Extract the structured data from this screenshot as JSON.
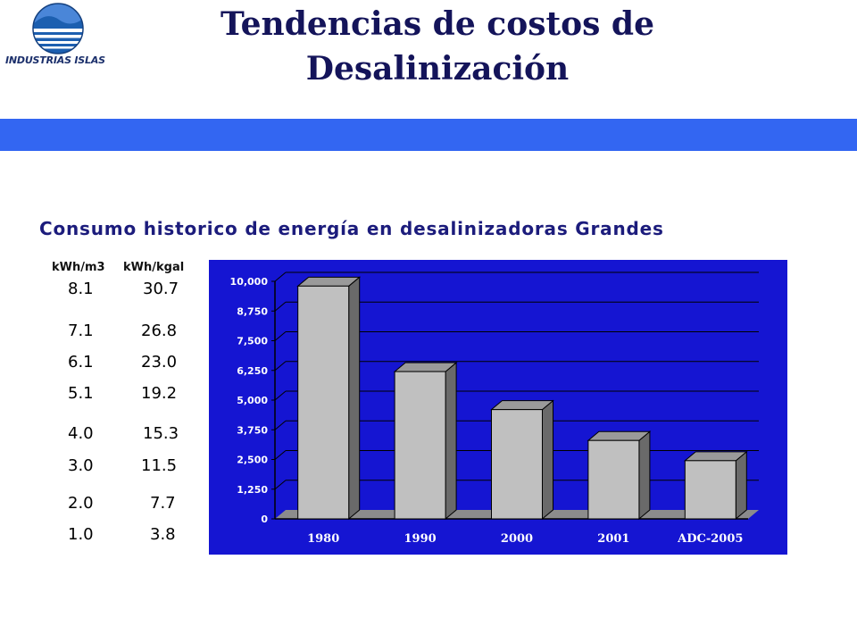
{
  "header": {
    "logo_text": "INDUSTRIAS ISLAS",
    "title_line1": "Tendencias de costos de",
    "title_line2": "Desalinización"
  },
  "conversion_table": {
    "col1_header": "kWh/m3",
    "col2_header": "kWh/kgal",
    "rows": [
      {
        "kwh_m3": "8.1",
        "kwh_kgal": "30.7"
      },
      {
        "kwh_m3": "7.1",
        "kwh_kgal": "26.8"
      },
      {
        "kwh_m3": "6.1",
        "kwh_kgal": "23.0"
      },
      {
        "kwh_m3": "5.1",
        "kwh_kgal": "19.2"
      },
      {
        "kwh_m3": "4.0",
        "kwh_kgal": "15.3"
      },
      {
        "kwh_m3": "3.0",
        "kwh_kgal": "11.5"
      },
      {
        "kwh_m3": "2.0",
        "kwh_kgal": "7.7"
      },
      {
        "kwh_m3": "1.0",
        "kwh_kgal": "3.8"
      }
    ]
  },
  "colors": {
    "plot_background": "#1515d2",
    "band": "#3366f2",
    "bar_front": "#c0c0c0",
    "bar_side": "#6a6a6a",
    "bar_top": "#9a9a9a",
    "text_dark_blue": "#14145a"
  },
  "chart_data": {
    "type": "bar",
    "title": "Consumo historico de energía en desalinizadoras Grandes",
    "categories": [
      "1980",
      "1990",
      "2000",
      "2001",
      "ADC-2005"
    ],
    "values": [
      9800,
      6200,
      4600,
      3300,
      2450
    ],
    "ylim": [
      0,
      10000
    ],
    "yticks": [
      "10,000",
      "8,750",
      "7,500",
      "6,250",
      "5,000",
      "3,750",
      "2,500",
      "1,250",
      "0"
    ],
    "xlabel": "",
    "ylabel": "",
    "grid": true,
    "legend": "none",
    "style": "3d"
  }
}
